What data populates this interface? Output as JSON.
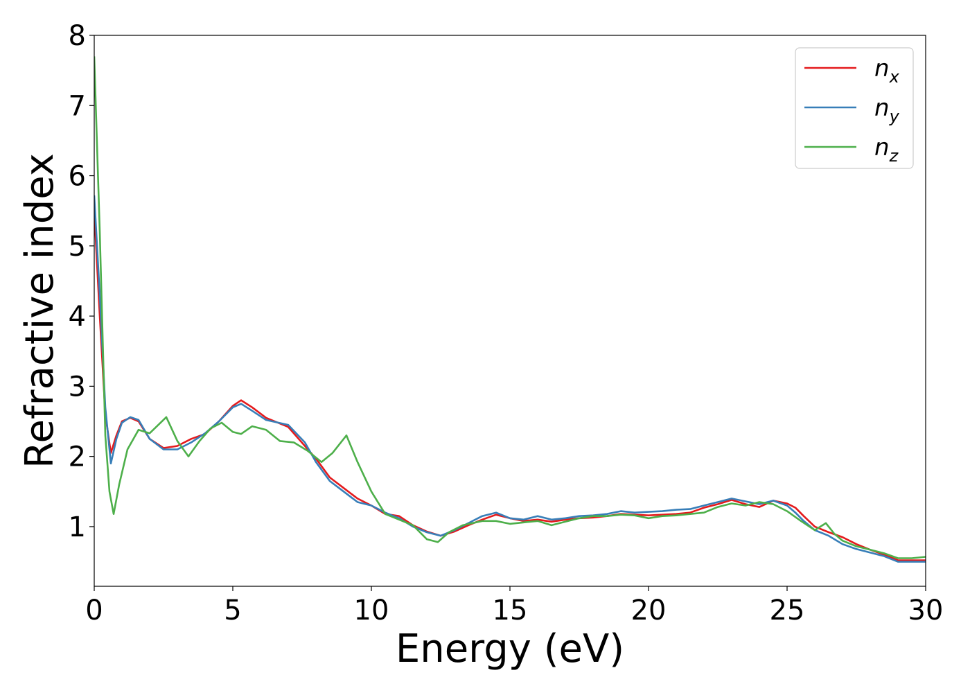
{
  "chart_data": {
    "type": "line",
    "xlabel": "Energy (eV)",
    "ylabel": "Refractive index",
    "xlim": [
      0,
      30
    ],
    "ylim": [
      0.15,
      8
    ],
    "xticks": [
      "0",
      "5",
      "10",
      "15",
      "20",
      "25",
      "30"
    ],
    "yticks": [
      "1",
      "2",
      "3",
      "4",
      "5",
      "6",
      "7",
      "8"
    ],
    "legend_position": "top-right",
    "grid": false,
    "series": [
      {
        "name": "n",
        "subscript": "x",
        "color": "#e41a1c",
        "x": [
          0,
          0.2,
          0.4,
          0.6,
          0.8,
          1.0,
          1.3,
          1.6,
          2.0,
          2.5,
          3.0,
          3.5,
          4.0,
          4.5,
          5.0,
          5.3,
          5.7,
          6.2,
          7.0,
          7.6,
          8.0,
          8.5,
          9.0,
          9.5,
          10.0,
          10.5,
          11.0,
          11.5,
          12.0,
          12.5,
          13.0,
          13.5,
          14.0,
          14.5,
          15.0,
          15.5,
          16.0,
          16.5,
          17.0,
          17.5,
          18.0,
          18.5,
          19.0,
          19.5,
          20.0,
          20.5,
          21.0,
          21.5,
          22.0,
          22.5,
          23.0,
          23.5,
          24.0,
          24.5,
          25.0,
          25.3,
          25.6,
          26.0,
          26.5,
          27.0,
          27.5,
          28.0,
          28.5,
          29.0,
          29.5,
          30.0
        ],
        "y": [
          5.5,
          4.0,
          2.6,
          2.05,
          2.3,
          2.5,
          2.55,
          2.5,
          2.25,
          2.12,
          2.15,
          2.25,
          2.32,
          2.5,
          2.72,
          2.8,
          2.7,
          2.55,
          2.42,
          2.15,
          1.97,
          1.7,
          1.55,
          1.4,
          1.3,
          1.18,
          1.15,
          1.02,
          0.93,
          0.87,
          0.93,
          1.02,
          1.1,
          1.17,
          1.12,
          1.08,
          1.1,
          1.07,
          1.1,
          1.12,
          1.13,
          1.15,
          1.18,
          1.17,
          1.16,
          1.17,
          1.18,
          1.2,
          1.27,
          1.32,
          1.38,
          1.32,
          1.28,
          1.37,
          1.33,
          1.27,
          1.15,
          1.0,
          0.92,
          0.85,
          0.75,
          0.67,
          0.6,
          0.52,
          0.52,
          0.52
        ]
      },
      {
        "name": "n",
        "subscript": "y",
        "color": "#377eb8",
        "x": [
          0,
          0.2,
          0.4,
          0.6,
          0.8,
          1.0,
          1.3,
          1.6,
          2.0,
          2.5,
          3.0,
          3.5,
          4.0,
          4.5,
          5.0,
          5.3,
          5.7,
          6.2,
          7.0,
          7.6,
          8.0,
          8.5,
          9.0,
          9.5,
          10.0,
          10.5,
          11.0,
          11.5,
          12.0,
          12.5,
          13.0,
          13.5,
          14.0,
          14.5,
          15.0,
          15.5,
          16.0,
          16.5,
          17.0,
          17.5,
          18.0,
          18.5,
          19.0,
          19.5,
          20.0,
          20.5,
          21.0,
          21.5,
          22.0,
          22.5,
          23.0,
          23.5,
          24.0,
          24.5,
          25.0,
          25.3,
          25.6,
          26.0,
          26.5,
          27.0,
          27.5,
          28.0,
          28.5,
          29.0,
          29.5,
          30.0
        ],
        "y": [
          5.72,
          4.3,
          2.7,
          1.9,
          2.25,
          2.48,
          2.56,
          2.52,
          2.25,
          2.1,
          2.1,
          2.2,
          2.33,
          2.5,
          2.7,
          2.75,
          2.65,
          2.52,
          2.45,
          2.2,
          1.92,
          1.65,
          1.5,
          1.35,
          1.3,
          1.2,
          1.12,
          1.0,
          0.92,
          0.87,
          0.95,
          1.05,
          1.15,
          1.2,
          1.12,
          1.1,
          1.15,
          1.1,
          1.12,
          1.15,
          1.16,
          1.18,
          1.22,
          1.2,
          1.21,
          1.22,
          1.24,
          1.25,
          1.3,
          1.35,
          1.4,
          1.36,
          1.32,
          1.37,
          1.3,
          1.2,
          1.08,
          0.95,
          0.87,
          0.75,
          0.68,
          0.63,
          0.58,
          0.5,
          0.5,
          0.5
        ]
      },
      {
        "name": "n",
        "subscript": "z",
        "color": "#4daf4a",
        "x": [
          0,
          0.2,
          0.4,
          0.55,
          0.7,
          0.9,
          1.2,
          1.6,
          2.0,
          2.6,
          3.0,
          3.4,
          3.8,
          4.2,
          4.6,
          5.0,
          5.3,
          5.7,
          6.2,
          6.7,
          7.2,
          7.7,
          8.2,
          8.6,
          9.1,
          9.5,
          10.0,
          10.5,
          11.0,
          11.5,
          12.0,
          12.4,
          12.8,
          13.3,
          14.0,
          14.5,
          15.0,
          15.5,
          16.0,
          16.5,
          17.0,
          17.5,
          18.0,
          18.5,
          19.0,
          19.5,
          20.0,
          20.5,
          21.0,
          21.5,
          22.0,
          22.5,
          23.0,
          23.5,
          24.0,
          24.5,
          25.0,
          25.5,
          26.0,
          26.4,
          26.7,
          27.0,
          27.5,
          28.0,
          28.5,
          29.0,
          29.5,
          30.0
        ],
        "y": [
          7.7,
          5.2,
          2.3,
          1.5,
          1.18,
          1.6,
          2.1,
          2.38,
          2.33,
          2.56,
          2.22,
          2.0,
          2.22,
          2.4,
          2.48,
          2.35,
          2.32,
          2.43,
          2.38,
          2.22,
          2.2,
          2.08,
          1.92,
          2.05,
          2.3,
          1.92,
          1.5,
          1.18,
          1.1,
          1.02,
          0.82,
          0.78,
          0.92,
          1.02,
          1.08,
          1.08,
          1.04,
          1.06,
          1.08,
          1.02,
          1.07,
          1.12,
          1.15,
          1.15,
          1.17,
          1.16,
          1.12,
          1.15,
          1.16,
          1.18,
          1.2,
          1.28,
          1.33,
          1.3,
          1.35,
          1.32,
          1.22,
          1.08,
          0.95,
          1.05,
          0.9,
          0.8,
          0.72,
          0.67,
          0.62,
          0.55,
          0.55,
          0.57
        ]
      }
    ]
  }
}
